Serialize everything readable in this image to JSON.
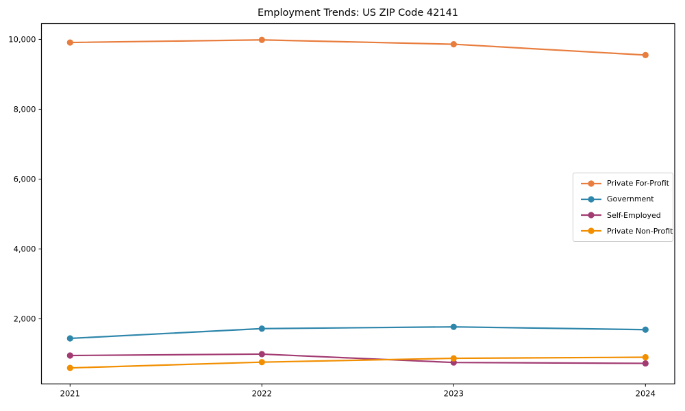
{
  "chart_data": {
    "type": "line",
    "title": "Employment Trends: US ZIP Code 42141",
    "categories": [
      "2021",
      "2022",
      "2023",
      "2024"
    ],
    "series": [
      {
        "name": "Private For-Profit",
        "color": "#E87D3E",
        "values": [
          9910,
          9985,
          9860,
          9550
        ]
      },
      {
        "name": "Government",
        "color": "#2E86AB",
        "values": [
          1440,
          1720,
          1770,
          1690
        ]
      },
      {
        "name": "Self-Employed",
        "color": "#A23B72",
        "values": [
          950,
          990,
          750,
          725
        ]
      },
      {
        "name": "Private Non-Profit",
        "color": "#F18F01",
        "values": [
          595,
          760,
          870,
          900
        ]
      }
    ],
    "xlabel": "",
    "ylabel": "",
    "yticks": [
      2000,
      4000,
      6000,
      8000,
      10000
    ],
    "ytick_labels": [
      "2,000",
      "4,000",
      "6,000",
      "8,000",
      "10,000"
    ],
    "ylim": [
      136,
      10450
    ],
    "grid": false,
    "marker": "circle",
    "legend_position": "center right"
  }
}
